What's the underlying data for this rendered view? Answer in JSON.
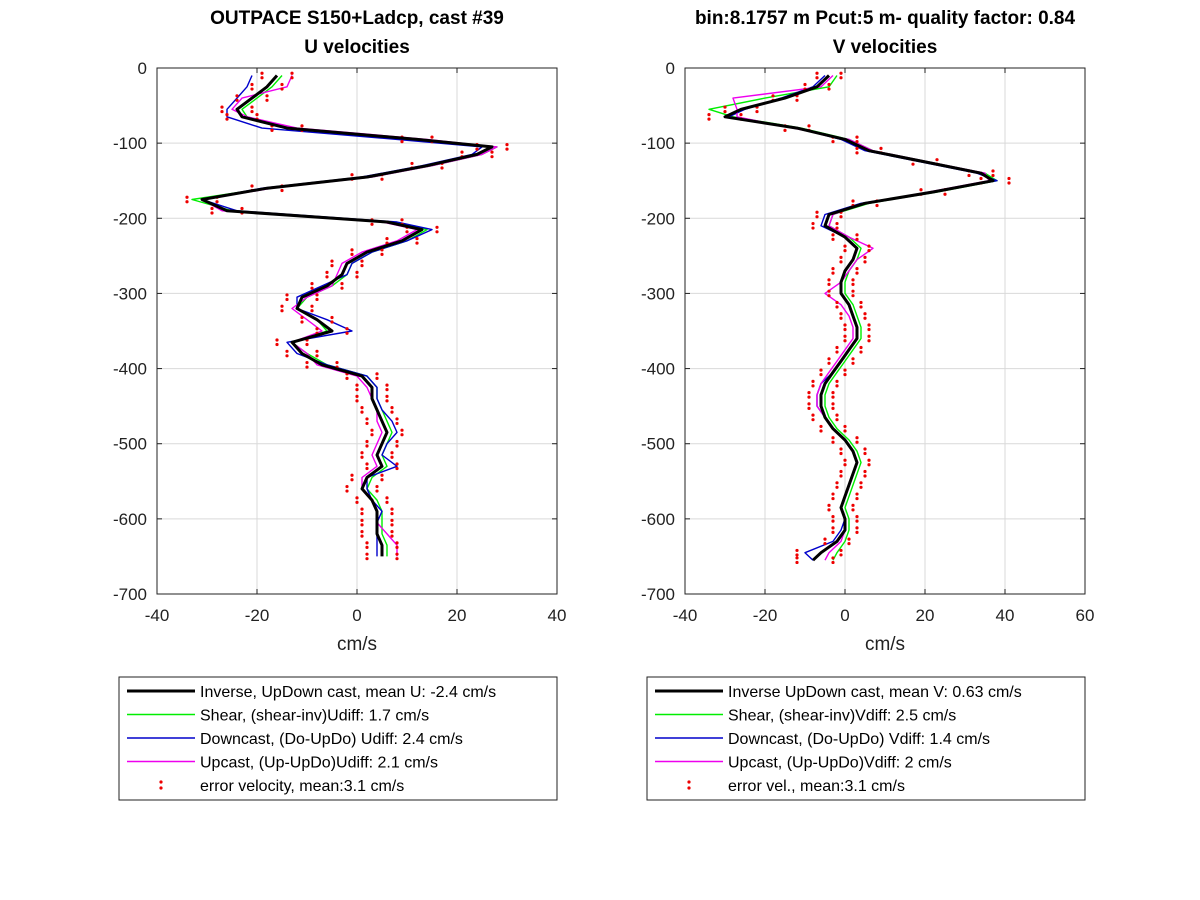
{
  "colors": {
    "inverse": "#000000",
    "shear": "#00ee00",
    "downcast": "#0000cc",
    "upcast": "#ee00ee",
    "error": "#ee0000",
    "grid": "#d9d9d9"
  },
  "chart_data": [
    {
      "type": "line",
      "orientation": "vertical-profile",
      "title_line1": "OUTPACE S150+Ladcp, cast #39",
      "title_line2": "U velocities",
      "xlabel": "cm/s",
      "xlim": [
        -40,
        40
      ],
      "ylim": [
        -700,
        0
      ],
      "xticks": [
        -40,
        -20,
        0,
        20,
        40
      ],
      "yticks": [
        0,
        -100,
        -200,
        -300,
        -400,
        -500,
        -600,
        -700
      ],
      "grid": true,
      "legend_position": "below",
      "depth": [
        -10,
        -25,
        -40,
        -55,
        -65,
        -80,
        -95,
        -105,
        -115,
        -130,
        -145,
        -160,
        -175,
        -190,
        -205,
        -215,
        -230,
        -245,
        -260,
        -275,
        -290,
        -305,
        -320,
        -335,
        -350,
        -365,
        -380,
        -395,
        -410,
        -425,
        -440,
        -455,
        -470,
        -485,
        -500,
        -515,
        -530,
        -545,
        -560,
        -575,
        -590,
        -605,
        -620,
        -635,
        -650
      ],
      "series": [
        {
          "key": "inverse",
          "name": "Inverse, UpDown cast, mean U:  -2.4 cm/s",
          "x": [
            -16,
            -18,
            -21,
            -24,
            -23,
            -14,
            12,
            27,
            24,
            14,
            2,
            -18,
            -31,
            -26,
            6,
            13,
            9,
            2,
            -2,
            -3,
            -6,
            -11,
            -12,
            -8,
            -5,
            -13,
            -11,
            -7,
            1,
            3,
            3,
            4,
            5,
            6,
            5,
            4,
            5,
            2,
            1,
            3,
            4,
            4,
            4,
            5,
            5
          ]
        },
        {
          "key": "shear",
          "name": "Shear, (shear-inv)Udiff:  1.7 cm/s",
          "x": [
            -15,
            -17,
            -20,
            -23,
            -22,
            -13,
            13,
            28,
            25,
            15,
            3,
            -18,
            -33,
            -25,
            7,
            14,
            10,
            3,
            -1,
            -2,
            -5,
            -10,
            -12,
            -8,
            -6,
            -13,
            -10,
            -6,
            2,
            4,
            4,
            5,
            6,
            7,
            6,
            5,
            6,
            3,
            2,
            4,
            5,
            5,
            5,
            6,
            6
          ]
        },
        {
          "key": "downcast",
          "name": "Downcast, (Do-UpDo) Udiff:  2.4 cm/s",
          "x": [
            -21,
            -22,
            -24,
            -26,
            -26,
            -19,
            8,
            25,
            23,
            13,
            1,
            -19,
            -31,
            -24,
            8,
            15,
            10,
            3,
            -1,
            -2,
            -7,
            -12,
            -12,
            -6,
            -1,
            -14,
            -12,
            -6,
            2,
            4,
            4,
            5,
            7,
            8,
            6,
            5,
            8,
            2,
            2,
            3,
            5,
            4,
            4,
            4,
            4
          ]
        },
        {
          "key": "upcast",
          "name": "Upcast, (Up-UpDo)Udiff:  2.1 cm/s",
          "x": [
            -13,
            -14,
            -23,
            -25,
            -22,
            -12,
            14,
            28,
            25,
            15,
            3,
            -17,
            -31,
            -27,
            5,
            12,
            8,
            1,
            -3,
            -4,
            -5,
            -10,
            -13,
            -10,
            -7,
            -13,
            -10,
            -8,
            0,
            2,
            3,
            4,
            4,
            5,
            4,
            3,
            4,
            1,
            1,
            3,
            4,
            4,
            6,
            8,
            8
          ]
        },
        {
          "key": "error",
          "name": "error velocity, mean:3.1 cm/s",
          "x_lower": [
            -19,
            -21,
            -24,
            -27,
            -26,
            -17,
            9,
            24,
            21,
            11,
            -1,
            -21,
            -34,
            -29,
            3,
            10,
            6,
            -1,
            -5,
            -6,
            -9,
            -14,
            -15,
            -11,
            -8,
            -16,
            -14,
            -10,
            -2,
            0,
            0,
            1,
            2,
            3,
            2,
            1,
            2,
            -1,
            -2,
            0,
            1,
            1,
            1,
            2,
            2
          ],
          "x_upper": [
            -13,
            -15,
            -18,
            -21,
            -20,
            -11,
            15,
            30,
            27,
            17,
            5,
            -15,
            -28,
            -23,
            9,
            16,
            12,
            5,
            1,
            0,
            -3,
            -8,
            -9,
            -5,
            -2,
            -10,
            -8,
            -4,
            4,
            6,
            6,
            7,
            8,
            9,
            8,
            7,
            8,
            5,
            4,
            6,
            7,
            7,
            7,
            8,
            8
          ]
        }
      ]
    },
    {
      "type": "line",
      "orientation": "vertical-profile",
      "title_line1": "bin:8.1757 m  Pcut:5 m- quality factor:  0.84",
      "title_line2": "V velocities",
      "xlabel": "cm/s",
      "xlim": [
        -40,
        60
      ],
      "ylim": [
        -700,
        0
      ],
      "xticks": [
        -40,
        -20,
        0,
        20,
        40,
        60
      ],
      "yticks": [
        0,
        -100,
        -200,
        -300,
        -400,
        -500,
        -600,
        -700
      ],
      "grid": true,
      "legend_position": "below",
      "depth": [
        -10,
        -25,
        -40,
        -55,
        -65,
        -80,
        -95,
        -110,
        -125,
        -140,
        -150,
        -165,
        -180,
        -195,
        -210,
        -225,
        -240,
        -255,
        -270,
        -285,
        -300,
        -315,
        -330,
        -345,
        -360,
        -375,
        -390,
        -405,
        -420,
        -435,
        -450,
        -465,
        -480,
        -495,
        -510,
        -525,
        -540,
        -555,
        -570,
        -585,
        -600,
        -615,
        -630,
        -645,
        -655
      ],
      "series": [
        {
          "key": "inverse",
          "name": "Inverse UpDown cast, mean V:  0.63 cm/s",
          "x": [
            -4,
            -7,
            -15,
            -26,
            -30,
            -12,
            0,
            6,
            20,
            34,
            37,
            22,
            5,
            -4,
            -5,
            0,
            3,
            2,
            0,
            -1,
            -1,
            1,
            2,
            3,
            3,
            1,
            -1,
            -3,
            -5,
            -6,
            -6,
            -5,
            -3,
            0,
            2,
            3,
            2,
            1,
            0,
            -1,
            0,
            0,
            -2,
            -6,
            -8
          ]
        },
        {
          "key": "shear",
          "name": "Shear, (shear-inv)Vdiff:  2.5 cm/s",
          "x": [
            -2,
            -4,
            -20,
            -34,
            -28,
            -11,
            1,
            7,
            21,
            35,
            38,
            23,
            6,
            -3,
            -4,
            1,
            4,
            3,
            1,
            0,
            0,
            2,
            3,
            4,
            4,
            2,
            0,
            -2,
            -4,
            -5,
            -5,
            -4,
            -2,
            1,
            3,
            4,
            3,
            2,
            1,
            0,
            1,
            1,
            0,
            -2,
            -3
          ]
        },
        {
          "key": "downcast",
          "name": "Downcast, (Do-UpDo) Vdiff:  1.4 cm/s",
          "x": [
            -5,
            -8,
            -16,
            -25,
            -29,
            -12,
            -1,
            5,
            19,
            33,
            38,
            22,
            4,
            -5,
            -6,
            0,
            3,
            2,
            0,
            -1,
            -1,
            1,
            2,
            3,
            3,
            1,
            -1,
            -3,
            -6,
            -7,
            -7,
            -5,
            -3,
            0,
            2,
            3,
            2,
            1,
            0,
            -1,
            0,
            -1,
            -3,
            -10,
            -8
          ]
        },
        {
          "key": "upcast",
          "name": "Upcast, (Up-UpDo)Vdiff:  2 cm/s",
          "x": [
            -3,
            -6,
            -28,
            -27,
            -27,
            -13,
            1,
            7,
            21,
            35,
            36,
            21,
            5,
            -3,
            -4,
            1,
            7,
            3,
            1,
            -1,
            -5,
            -1,
            1,
            2,
            2,
            0,
            -2,
            -4,
            -6,
            -7,
            -7,
            -5,
            -3,
            0,
            2,
            3,
            2,
            1,
            0,
            -1,
            0,
            0,
            -1,
            -4,
            -5
          ]
        },
        {
          "key": "error",
          "name": "error vel., mean:3.1 cm/s",
          "x_lower": [
            -7,
            -10,
            -18,
            -30,
            -34,
            -15,
            -3,
            3,
            17,
            31,
            34,
            19,
            2,
            -7,
            -8,
            -3,
            0,
            -1,
            -3,
            -4,
            -4,
            -2,
            -1,
            0,
            0,
            -2,
            -4,
            -6,
            -8,
            -9,
            -9,
            -8,
            -6,
            -3,
            -1,
            0,
            -1,
            -2,
            -3,
            -4,
            -3,
            -3,
            -5,
            -12,
            -12
          ],
          "x_upper": [
            -1,
            -4,
            -12,
            -22,
            -26,
            -9,
            3,
            9,
            23,
            37,
            41,
            25,
            8,
            -1,
            -2,
            3,
            6,
            5,
            3,
            2,
            2,
            4,
            5,
            6,
            6,
            4,
            2,
            0,
            -2,
            -3,
            -3,
            -2,
            0,
            3,
            5,
            6,
            5,
            4,
            3,
            2,
            3,
            3,
            1,
            -1,
            -3
          ]
        }
      ]
    }
  ]
}
